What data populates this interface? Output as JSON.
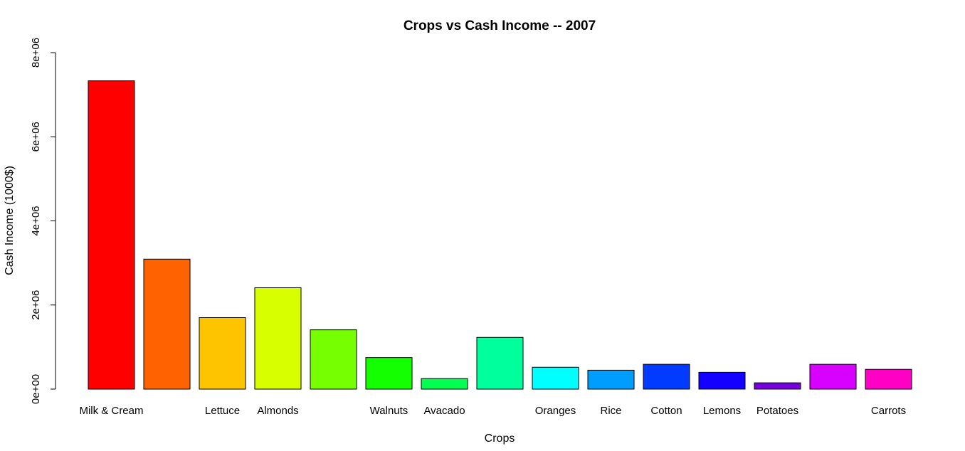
{
  "chart_data": {
    "type": "bar",
    "title": "Crops vs Cash Income -- 2007",
    "xlabel": "Crops",
    "ylabel": "Cash Income (1000$)",
    "ylim": [
      0,
      8000000
    ],
    "yticks": [
      0,
      2000000,
      4000000,
      6000000,
      8000000
    ],
    "ytick_labels": [
      "0e+00",
      "2e+06",
      "4e+06",
      "6e+06",
      "8e+06"
    ],
    "categories": [
      "Milk & Cream",
      "",
      "Lettuce",
      "Almonds",
      "",
      "Walnuts",
      "Avacado",
      "",
      "Oranges",
      "Rice",
      "Cotton",
      "Lemons",
      "Potatoes",
      "",
      "Carrots"
    ],
    "values": [
      7330000,
      3090000,
      1700000,
      2410000,
      1410000,
      750000,
      250000,
      1230000,
      520000,
      450000,
      590000,
      400000,
      150000,
      590000,
      470000
    ],
    "colors": [
      "#FF0000",
      "#FF6200",
      "#FFC400",
      "#D8FF00",
      "#76FF00",
      "#14FF00",
      "#00FF4E",
      "#00FF9D",
      "#00FFFF",
      "#009DFF",
      "#003BFF",
      "#1400FF",
      "#7600E0",
      "#D800FF",
      "#FF00C4"
    ],
    "grid": false,
    "legend": "none"
  }
}
